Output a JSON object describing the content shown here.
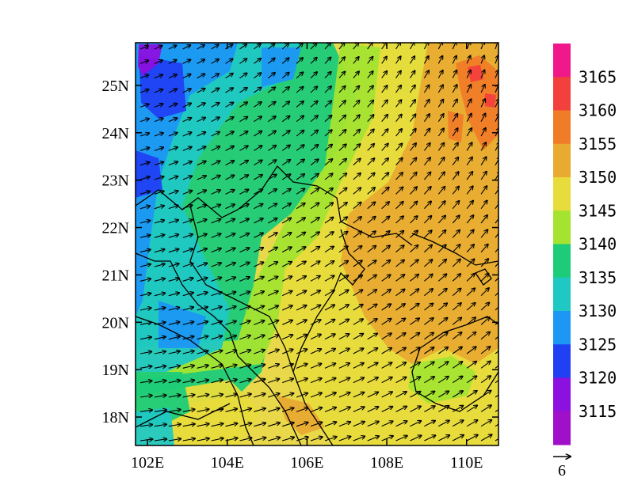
{
  "map": {
    "lon_range": [
      101.7,
      110.8
    ],
    "lat_range": [
      17.4,
      25.9
    ],
    "lon_tick_labels": [
      {
        "lon": 102,
        "text": "102E"
      },
      {
        "lon": 104,
        "text": "104E"
      },
      {
        "lon": 106,
        "text": "106E"
      },
      {
        "lon": 108,
        "text": "108E"
      },
      {
        "lon": 110,
        "text": "110E"
      }
    ],
    "lat_tick_labels": [
      {
        "lat": 18,
        "text": "18N"
      },
      {
        "lat": 19,
        "text": "19N"
      },
      {
        "lat": 20,
        "text": "20N"
      },
      {
        "lat": 21,
        "text": "21N"
      },
      {
        "lat": 22,
        "text": "22N"
      },
      {
        "lat": 23,
        "text": "23N"
      },
      {
        "lat": 24,
        "text": "24N"
      },
      {
        "lat": 25,
        "text": "25N"
      }
    ]
  },
  "colorbar": {
    "labels": [
      "3165",
      "3160",
      "3155",
      "3150",
      "3145",
      "3140",
      "3135",
      "3130",
      "3125",
      "3120",
      "3115"
    ],
    "colors": [
      "#f0188a",
      "#f2403c",
      "#f07c28",
      "#e8aa30",
      "#e8dc3c",
      "#a4e430",
      "#1ccc78",
      "#20c8c4",
      "#1c98f4",
      "#2040f4",
      "#8c10e0",
      "#a010c8"
    ]
  },
  "vector_reference": {
    "label": "6"
  }
}
